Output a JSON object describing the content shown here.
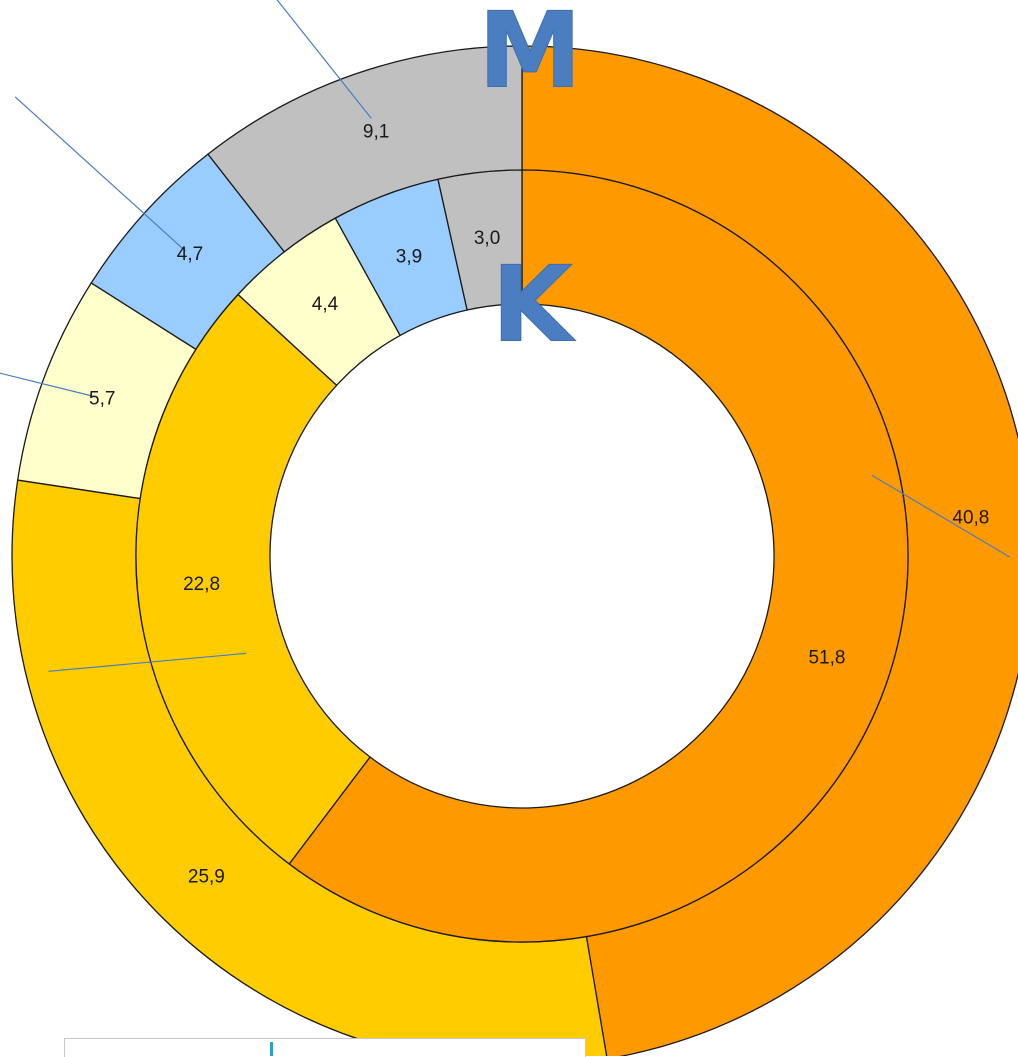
{
  "chart_data": {
    "type": "pie",
    "subtype": "donut",
    "rings": [
      {
        "name": "M",
        "slices": [
          {
            "value": 40.8,
            "label": "40,8",
            "color": "#ff9900"
          },
          {
            "value": 25.9,
            "label": "25,9",
            "color": "#ffcc00"
          },
          {
            "value": 5.7,
            "label": "5,7",
            "color": "#ffffcc"
          },
          {
            "value": 4.7,
            "label": "4,7",
            "color": "#99ccff"
          },
          {
            "value": 9.1,
            "label": "9,1",
            "color": "#c0c0c0"
          }
        ]
      },
      {
        "name": "K",
        "slices": [
          {
            "value": 51.8,
            "label": "51,8",
            "color": "#ff9900"
          },
          {
            "value": 22.8,
            "label": "22,8",
            "color": "#ffcc00"
          },
          {
            "value": 4.4,
            "label": "4,4",
            "color": "#ffffcc"
          },
          {
            "value": 3.9,
            "label": "3,9",
            "color": "#99ccff"
          },
          {
            "value": 3.0,
            "label": "3,0",
            "color": "#c0c0c0"
          }
        ]
      }
    ],
    "ring_letter_color": "#4a7ec0",
    "leader_line_color": "#4a7ec0"
  }
}
